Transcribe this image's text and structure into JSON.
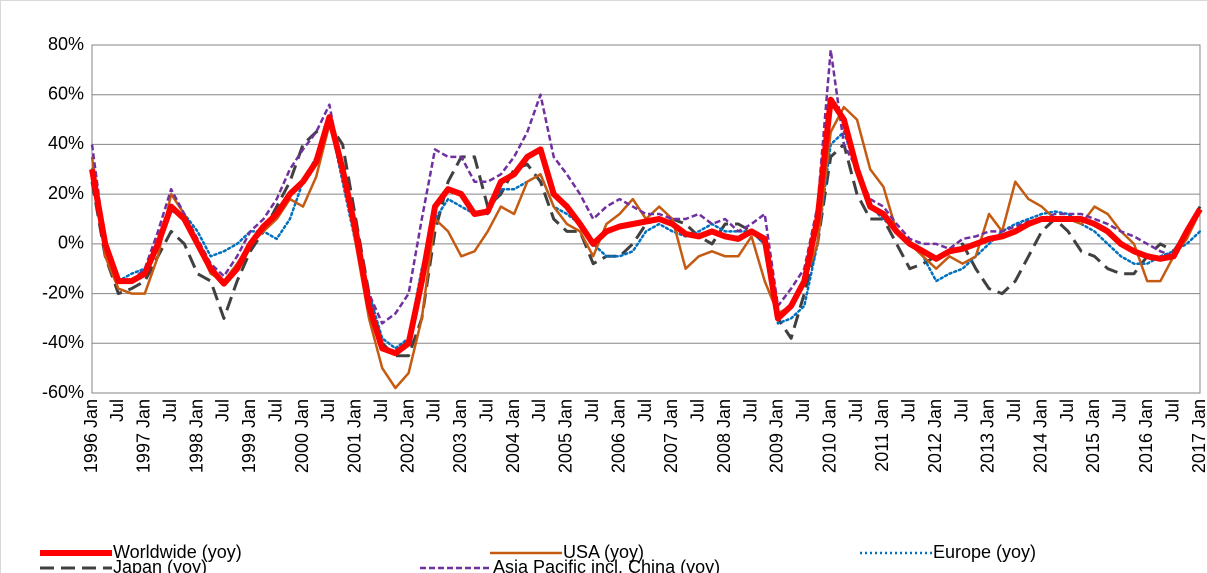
{
  "chart_data": {
    "type": "line",
    "categories": [
      "1996 Jan",
      null,
      "Jul",
      null,
      "1997 Jan",
      null,
      "Jul",
      null,
      "1998 Jan",
      null,
      "Jul",
      null,
      "1999 Jan",
      null,
      "Jul",
      null,
      "2000 Jan",
      null,
      "Jul",
      null,
      "2001 Jan",
      null,
      "Jul",
      null,
      "2002 Jan",
      null,
      "Jul",
      null,
      "2003 Jan",
      null,
      "Jul",
      null,
      "2004 Jan",
      null,
      "Jul",
      null,
      "2005 Jan",
      null,
      "Jul",
      null,
      "2006 Jan",
      null,
      "Jul",
      null,
      "2007 Jan",
      null,
      "Jul",
      null,
      "2008 Jan",
      null,
      "Jul",
      null,
      "2009 Jan",
      null,
      "Jul",
      null,
      "2010 Jan",
      null,
      "Jul",
      null,
      "2011 Jan",
      null,
      "Jul",
      null,
      "2012 Jan",
      null,
      "Jul",
      null,
      "2013 Jan",
      null,
      "Jul",
      null,
      "2014 Jan",
      null,
      "Jul",
      null,
      "2015 Jan",
      null,
      "Jul",
      null,
      "2016 Jan",
      null,
      "Jul",
      null,
      "2017 Jan"
    ],
    "series": [
      {
        "name": "Worldwide (yoy)",
        "color": "#ff0000",
        "values": [
          30,
          0,
          -15,
          -15,
          -12,
          0,
          15,
          10,
          0,
          -10,
          -16,
          -10,
          0,
          7,
          12,
          20,
          25,
          33,
          51,
          30,
          5,
          -25,
          -42,
          -44,
          -40,
          -15,
          15,
          22,
          20,
          12,
          13,
          25,
          28,
          35,
          38,
          20,
          15,
          8,
          0,
          5,
          7,
          8,
          9,
          10,
          8,
          4,
          3,
          5,
          3,
          2,
          5,
          2,
          -30,
          -25,
          -15,
          10,
          58,
          50,
          30,
          15,
          12,
          5,
          0,
          -3,
          -6,
          -3,
          -2,
          0,
          2,
          3,
          5,
          8,
          10,
          10,
          10,
          10,
          8,
          5,
          0,
          -3,
          -5,
          -6,
          -5,
          5,
          14
        ]
      },
      {
        "name": "USA (yoy)",
        "color": "#c55a11",
        "values": [
          35,
          -5,
          -18,
          -20,
          -20,
          -5,
          20,
          12,
          0,
          -12,
          -15,
          -8,
          0,
          5,
          10,
          18,
          15,
          27,
          48,
          30,
          0,
          -30,
          -50,
          -58,
          -52,
          -30,
          10,
          5,
          -5,
          -3,
          5,
          15,
          12,
          25,
          28,
          15,
          8,
          5,
          -5,
          8,
          12,
          18,
          10,
          15,
          10,
          -10,
          -5,
          -3,
          -5,
          -5,
          3,
          -15,
          -28,
          -25,
          -15,
          0,
          45,
          55,
          50,
          30,
          23,
          5,
          0,
          -5,
          -10,
          -5,
          -8,
          -5,
          12,
          5,
          25,
          18,
          15,
          10,
          10,
          8,
          15,
          12,
          5,
          0,
          -15,
          -15,
          -5,
          2,
          13
        ]
      },
      {
        "name": "Europe (yoy)",
        "color": "#0070c0",
        "values": [
          30,
          0,
          -15,
          -12,
          -10,
          0,
          13,
          12,
          5,
          -5,
          -3,
          0,
          5,
          5,
          2,
          10,
          25,
          35,
          50,
          25,
          0,
          -20,
          -38,
          -42,
          -38,
          -10,
          10,
          18,
          15,
          12,
          12,
          22,
          22,
          25,
          28,
          15,
          12,
          8,
          0,
          -5,
          -5,
          -3,
          5,
          8,
          5,
          3,
          5,
          8,
          5,
          5,
          5,
          0,
          -32,
          -30,
          -25,
          0,
          40,
          45,
          30,
          15,
          10,
          5,
          0,
          -5,
          -15,
          -12,
          -10,
          -5,
          0,
          5,
          8,
          10,
          12,
          13,
          12,
          8,
          5,
          0,
          -5,
          -8,
          -8,
          -5,
          -3,
          0,
          5
        ]
      },
      {
        "name": "Japan (yoy)",
        "color": "#404040",
        "values": [
          25,
          -5,
          -20,
          -18,
          -15,
          -5,
          5,
          0,
          -12,
          -15,
          -30,
          -15,
          -3,
          5,
          15,
          25,
          40,
          45,
          48,
          40,
          10,
          -20,
          -40,
          -45,
          -45,
          -30,
          5,
          25,
          35,
          35,
          15,
          20,
          30,
          32,
          25,
          10,
          5,
          5,
          -8,
          -5,
          -5,
          0,
          8,
          10,
          10,
          8,
          3,
          0,
          8,
          8,
          5,
          0,
          -30,
          -38,
          -20,
          0,
          35,
          40,
          20,
          10,
          10,
          0,
          -10,
          -8,
          -5,
          -3,
          0,
          -10,
          -18,
          -20,
          -15,
          -5,
          5,
          10,
          5,
          -3,
          -5,
          -10,
          -12,
          -12,
          -5,
          0,
          -3,
          5,
          15
        ]
      },
      {
        "name": "Asia Pacific incl. China (yoy)",
        "color": "#7030a0",
        "values": [
          40,
          0,
          -15,
          -15,
          -10,
          5,
          22,
          12,
          2,
          -8,
          -13,
          -5,
          5,
          10,
          18,
          30,
          38,
          45,
          56,
          28,
          5,
          -20,
          -32,
          -28,
          -20,
          10,
          38,
          35,
          35,
          25,
          25,
          28,
          35,
          45,
          60,
          35,
          28,
          20,
          10,
          15,
          18,
          15,
          12,
          12,
          10,
          10,
          12,
          8,
          10,
          5,
          8,
          12,
          -25,
          -18,
          -10,
          15,
          78,
          40,
          30,
          18,
          15,
          8,
          2,
          0,
          0,
          -2,
          2,
          3,
          5,
          5,
          7,
          9,
          10,
          12,
          12,
          12,
          10,
          8,
          5,
          3,
          0,
          -3,
          -5,
          5,
          15
        ]
      }
    ],
    "ylim": [
      -60,
      80
    ],
    "yticks": [
      {
        "value": -60,
        "label": "-60%"
      },
      {
        "value": -40,
        "label": "-40%"
      },
      {
        "value": -20,
        "label": "-20%"
      },
      {
        "value": 0,
        "label": "0%"
      },
      {
        "value": 20,
        "label": "20%"
      },
      {
        "value": 40,
        "label": "40%"
      },
      {
        "value": 60,
        "label": "60%"
      },
      {
        "value": 80,
        "label": "80%"
      }
    ],
    "grid": true
  }
}
